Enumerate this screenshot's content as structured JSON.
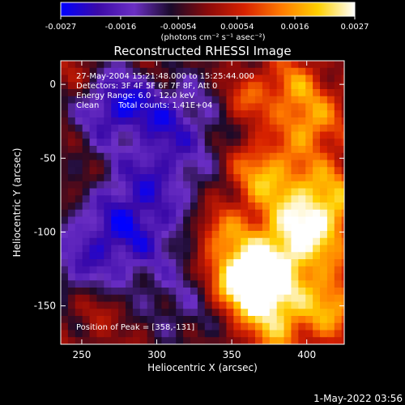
{
  "chart_data": {
    "type": "heatmap",
    "title": "Reconstructed RHESSI Image",
    "xlabel": "Heliocentric X (arcsec)",
    "ylabel": "Heliocentric Y (arcsec)",
    "xlim": [
      236,
      425
    ],
    "ylim": [
      -176,
      16
    ],
    "x_ticks": [
      250,
      300,
      350,
      400
    ],
    "y_ticks": [
      0,
      -50,
      -100,
      -150
    ],
    "colorbar": {
      "range": [
        -0.0027,
        0.0027
      ],
      "ticks": [
        "-0.0027",
        "-0.0016",
        "-0.00054",
        "0.00054",
        "0.0016",
        "0.0027"
      ],
      "label": "(photons cm⁻² s⁻¹ asec⁻²)",
      "colormap": [
        "#0000ff",
        "#3b0aa8",
        "#6b2fc4",
        "#1a0a2a",
        "#8b0a0a",
        "#d82200",
        "#ff7a00",
        "#ffd000",
        "#ffffff"
      ]
    },
    "annotations": {
      "time_range": "27-May-2004 15:21:48.000 to 15:25:44.000",
      "detectors": "Detectors: 3F 4F 5F 6F 7F 8F, Att 0",
      "energy": "Energy Range: 6.0 - 12.0 keV",
      "algorithm": "Clean",
      "counts": "Total counts: 1.41E+04",
      "peak": "Position of Peak = [358,-131]"
    },
    "peak": {
      "x": 358,
      "y": -131,
      "value": 0.0027
    },
    "min": {
      "x": 300,
      "y": -30,
      "value": -0.0027
    }
  },
  "footer": {
    "date": "1-May-2022 03:56"
  }
}
